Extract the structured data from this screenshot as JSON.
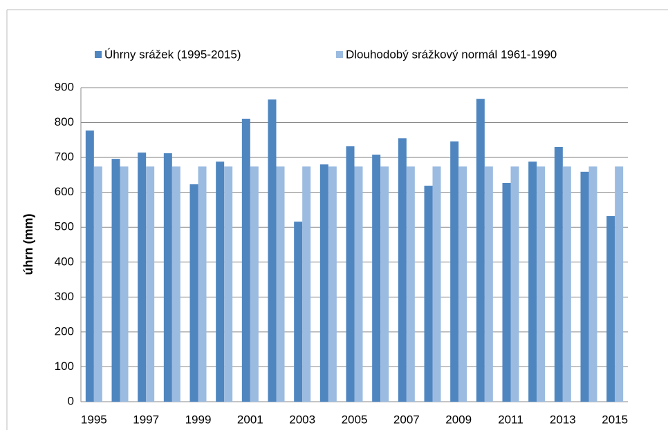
{
  "chart_data": {
    "type": "bar",
    "ylabel": "úhrn (mm)",
    "categories": [
      "1995",
      null,
      "1997",
      null,
      "1999",
      null,
      "2001",
      null,
      "2003",
      null,
      "2005",
      null,
      "2007",
      null,
      "2009",
      null,
      "2011",
      null,
      "2013",
      null,
      "2015"
    ],
    "series": [
      {
        "name": "Úhrny srážek (1995-2015)",
        "color": "#4f86c0",
        "values": [
          777,
          696,
          714,
          712,
          623,
          688,
          811,
          866,
          516,
          680,
          732,
          708,
          755,
          619,
          746,
          868,
          627,
          688,
          730,
          659,
          532
        ]
      },
      {
        "name": "Dlouhodobý srážkový normál 1961-1990",
        "color": "#9bbbe0",
        "values": [
          674,
          674,
          674,
          674,
          674,
          674,
          674,
          674,
          674,
          674,
          674,
          674,
          674,
          674,
          674,
          674,
          674,
          674,
          674,
          674,
          674
        ]
      }
    ],
    "ylim": [
      0,
      900
    ],
    "yticks": [
      0,
      100,
      200,
      300,
      400,
      500,
      600,
      700,
      800,
      900
    ],
    "grid": true,
    "legend": "top"
  }
}
